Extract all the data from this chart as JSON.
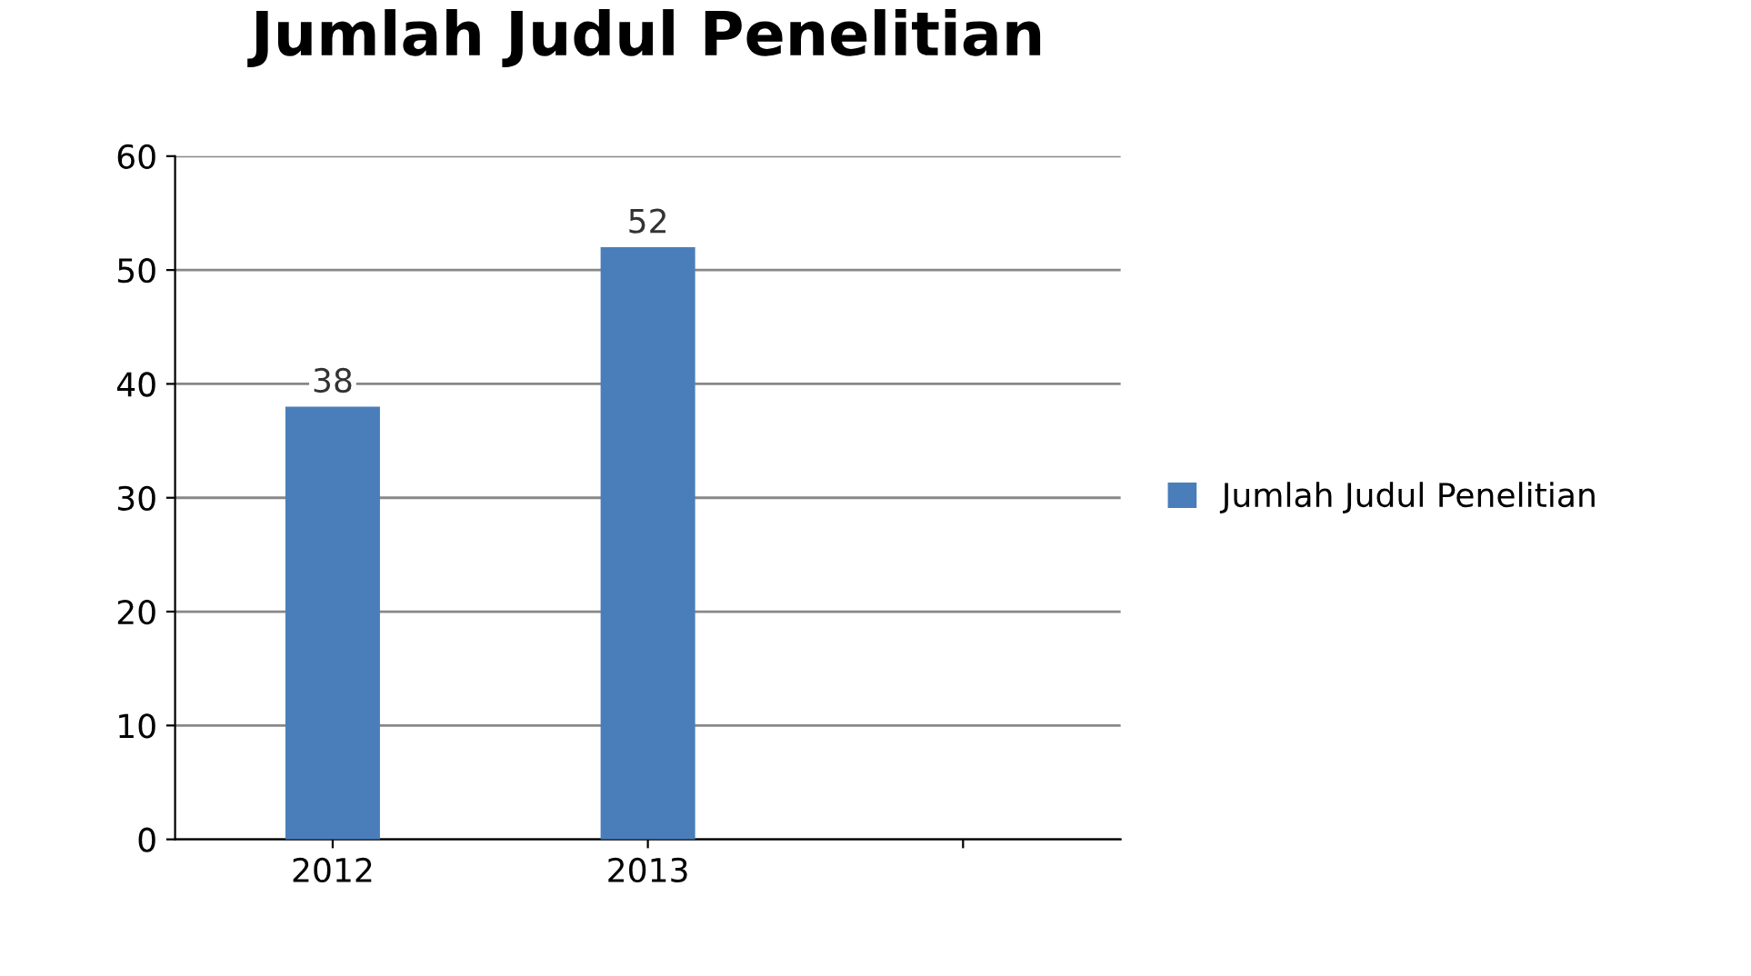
{
  "chart_data": {
    "type": "bar",
    "title": "Jumlah Judul Penelitian",
    "categories": [
      "2012",
      "2013",
      null
    ],
    "series": [
      {
        "name": "Jumlah Judul Penelitian",
        "color": "#4a7ebb",
        "values": [
          38,
          52,
          null
        ]
      }
    ],
    "ylim": [
      0,
      60
    ],
    "yticks": [
      0,
      10,
      20,
      30,
      40,
      50,
      60
    ],
    "grid": "y",
    "legend": "right",
    "data_labels": true
  }
}
